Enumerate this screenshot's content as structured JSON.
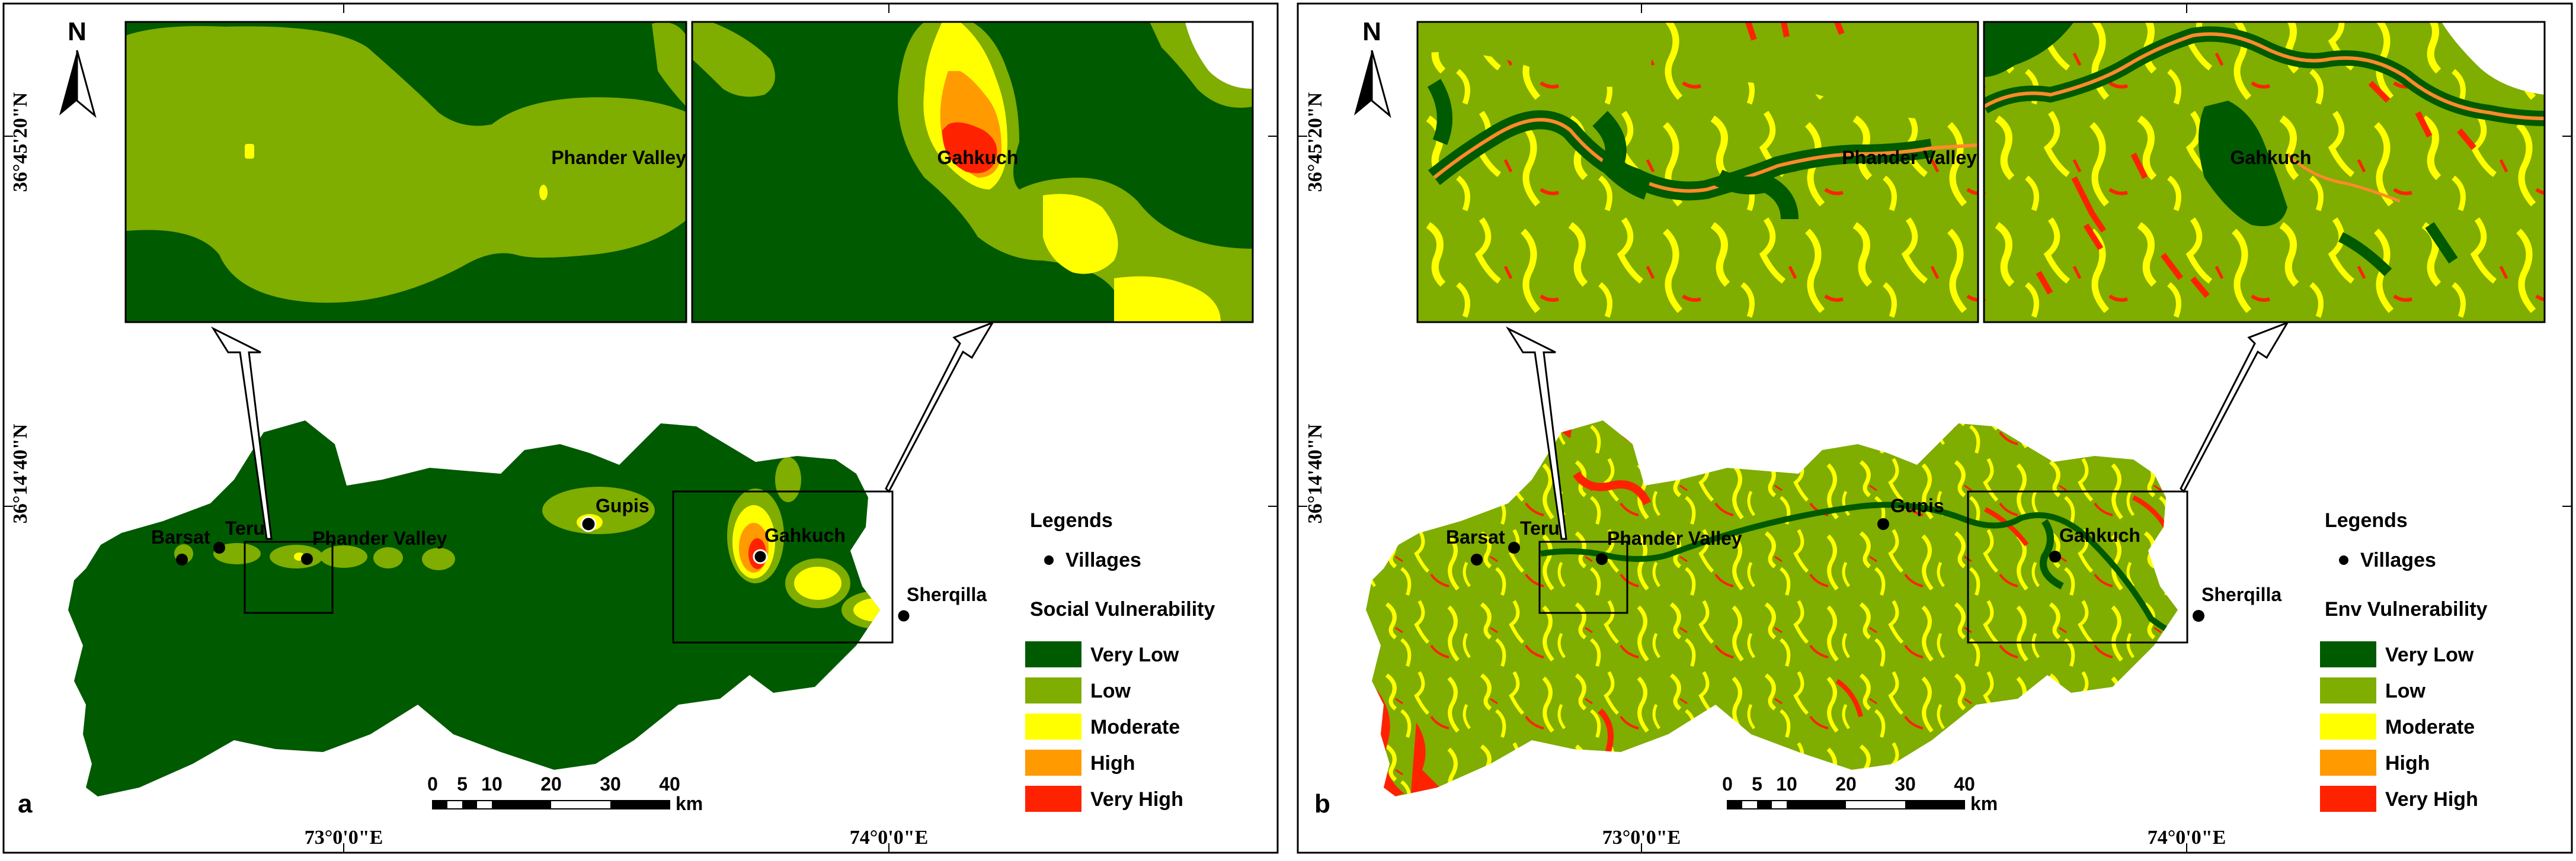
{
  "colors": {
    "very_low": "#005a00",
    "low": "#7fad00",
    "moderate": "#ffff00",
    "high": "#ff9a00",
    "very_high": "#ff2200"
  },
  "panels": [
    {
      "panel_label": "a",
      "north_label": "N",
      "coord_lat": [
        "36°45'20\"N",
        "36°14'40\"N"
      ],
      "coord_lon": [
        "73°0'0\"E",
        "74°0'0\"E"
      ],
      "villages": [
        "Barsat",
        "Teru",
        "Phander Valley",
        "Gupis",
        "Gahkuch",
        "Sherqilla"
      ],
      "inset_labels": [
        "Phander Valley",
        "Gahkuch"
      ],
      "legend": {
        "heading": "Legends",
        "villages_label": "Villages",
        "title": "Social Vulnerability",
        "classes": [
          "Very Low",
          "Low",
          "Moderate",
          "High",
          "Very High"
        ]
      },
      "scale": {
        "ticks": [
          "0",
          "5",
          "10",
          "20",
          "30",
          "40"
        ],
        "unit": "km"
      }
    },
    {
      "panel_label": "b",
      "north_label": "N",
      "coord_lat": [
        "36°45'20\"N",
        "36°14'40\"N"
      ],
      "coord_lon": [
        "73°0'0\"E",
        "74°0'0\"E"
      ],
      "villages": [
        "Barsat",
        "Teru",
        "Phander Valley",
        "Gupis",
        "Gahkuch",
        "Sherqilla"
      ],
      "inset_labels": [
        "Phander Valley",
        "Gahkuch"
      ],
      "legend": {
        "heading": "Legends",
        "villages_label": "Villages",
        "title": "Env Vulnerability",
        "classes": [
          "Very Low",
          "Low",
          "Moderate",
          "High",
          "Very High"
        ]
      },
      "scale": {
        "ticks": [
          "0",
          "5",
          "10",
          "20",
          "30",
          "40"
        ],
        "unit": "km"
      }
    }
  ]
}
